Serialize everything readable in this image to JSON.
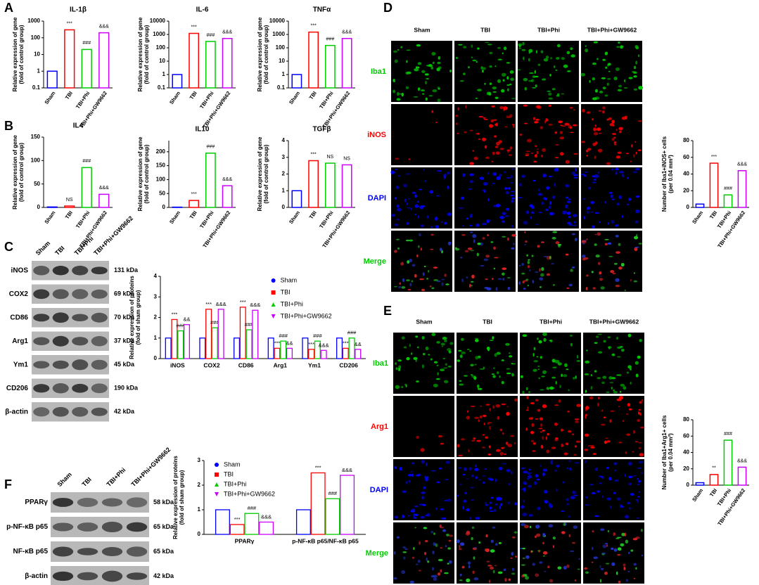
{
  "panel_labels": [
    "A",
    "B",
    "C",
    "D",
    "E",
    "F"
  ],
  "chart_data": [
    {
      "type": "bar",
      "title": "IL-1β",
      "ylabel": [
        "Relative expression of gene",
        "(fold of control group)"
      ],
      "log": true,
      "ylim": [
        0.1,
        1000
      ],
      "yticks": [
        0.1,
        1,
        10,
        100,
        1000
      ],
      "categories": [
        "Sham",
        "TBI",
        "TBI+Phi",
        "TBI+Phi+GW9662"
      ],
      "values": [
        1,
        300,
        20,
        200
      ],
      "colors": [
        "#0000ff",
        "#ff0000",
        "#00cc00",
        "#cc00ff"
      ],
      "annotations": [
        null,
        "***",
        "###",
        "&&&"
      ]
    },
    {
      "type": "bar",
      "title": "IL-6",
      "ylabel": [
        "Relative expression of gene",
        "(fold of control group)"
      ],
      "log": true,
      "ylim": [
        0.1,
        10000
      ],
      "yticks": [
        0.1,
        1,
        10,
        100,
        1000,
        10000
      ],
      "categories": [
        "Sham",
        "TBI",
        "TBI+Phi",
        "TBI+Phi+GW9662"
      ],
      "values": [
        1,
        1200,
        300,
        500
      ],
      "colors": [
        "#0000ff",
        "#ff0000",
        "#00cc00",
        "#cc00ff"
      ],
      "annotations": [
        null,
        "***",
        "###",
        "&&&"
      ]
    },
    {
      "type": "bar",
      "title": "TNFα",
      "ylabel": [
        "Relative expression of gene",
        "(fold of control group)"
      ],
      "log": true,
      "ylim": [
        0.1,
        10000
      ],
      "yticks": [
        0.1,
        1,
        10,
        100,
        1000,
        10000
      ],
      "categories": [
        "Sham",
        "TBI",
        "TBI+Phi",
        "TBI+Phi+GW9662"
      ],
      "values": [
        1,
        1500,
        150,
        500
      ],
      "colors": [
        "#0000ff",
        "#ff0000",
        "#00cc00",
        "#cc00ff"
      ],
      "annotations": [
        null,
        "***",
        "###",
        "&&&"
      ]
    },
    {
      "type": "bar",
      "title": "IL4",
      "ylabel": [
        "Relative expression of gene",
        "(fold of control group)"
      ],
      "log": false,
      "ylim": [
        0,
        150
      ],
      "yticks": [
        0,
        50,
        100,
        150
      ],
      "categories": [
        "Sham",
        "TBI",
        "TBI+Phi",
        "TBI+Phi+GW9662"
      ],
      "values": [
        1,
        3,
        85,
        28
      ],
      "colors": [
        "#0000ff",
        "#ff0000",
        "#00cc00",
        "#cc00ff"
      ],
      "annotations": [
        null,
        "NS",
        "###",
        "&&&"
      ]
    },
    {
      "type": "bar",
      "title": "IL10",
      "ylabel": [
        "Relative expression of gene",
        "(fold of control group)"
      ],
      "log": false,
      "ylim": [
        0,
        240
      ],
      "yticks": [
        0,
        50,
        100,
        150,
        200
      ],
      "categories": [
        "Sham",
        "TBI",
        "TBI+Phi",
        "TBI+Phi+GW9662"
      ],
      "values": [
        1,
        25,
        195,
        78
      ],
      "colors": [
        "#0000ff",
        "#ff0000",
        "#00cc00",
        "#cc00ff"
      ],
      "annotations": [
        null,
        "***",
        "###",
        "&&&"
      ]
    },
    {
      "type": "bar",
      "title": "TGFβ",
      "ylabel": [
        "Relative expression of gene",
        "(fold of control group)"
      ],
      "log": false,
      "ylim": [
        0,
        4
      ],
      "yticks": [
        0,
        1,
        2,
        3,
        4
      ],
      "categories": [
        "Sham",
        "TBI",
        "TBI+Phi",
        "TBI+Phi+GW9662"
      ],
      "values": [
        1,
        2.8,
        2.65,
        2.55
      ],
      "colors": [
        "#0000ff",
        "#ff0000",
        "#00cc00",
        "#cc00ff"
      ],
      "annotations": [
        null,
        "***",
        "NS",
        "NS"
      ]
    },
    {
      "type": "grouped_bar",
      "ylabel": [
        "Relative expression of proteins",
        "(fold of sham group)"
      ],
      "ylim": [
        0,
        4
      ],
      "yticks": [
        0,
        1,
        2,
        3,
        4
      ],
      "legend": "top-right",
      "categories": [
        "iNOS",
        "COX2",
        "CD86",
        "Arg1",
        "Ym1",
        "CD206"
      ],
      "series": [
        {
          "name": "Sham",
          "color": "#0000ff",
          "marker": "circle",
          "values": [
            1,
            1,
            1,
            1,
            1,
            1
          ]
        },
        {
          "name": "TBI",
          "color": "#ff0000",
          "marker": "square",
          "values": [
            1.9,
            2.4,
            2.5,
            0.5,
            0.45,
            0.5
          ],
          "annotations": [
            "***",
            "***",
            "***",
            "***",
            "***",
            "***"
          ]
        },
        {
          "name": "TBI+Phi",
          "color": "#00cc00",
          "marker": "triangle-up",
          "values": [
            1.35,
            1.5,
            1.4,
            0.85,
            0.85,
            1.0
          ],
          "annotations": [
            "###",
            "###",
            "###",
            "###",
            "###",
            "###"
          ]
        },
        {
          "name": "TBI+Phi+GW9662",
          "color": "#cc00ff",
          "marker": "triangle-down",
          "values": [
            1.65,
            2.4,
            2.35,
            0.5,
            0.4,
            0.45
          ],
          "annotations": [
            "&&",
            "&&&",
            "&&&",
            "&&",
            "&&&",
            "&&"
          ]
        }
      ]
    },
    {
      "type": "grouped_bar",
      "ylabel": [
        "Relative expression of proteins",
        "(fold of sham group)"
      ],
      "ylim": [
        0,
        3
      ],
      "yticks": [
        0,
        1,
        2,
        3
      ],
      "legend": "top-left",
      "categories": [
        "PPARγ",
        "p-NF-κB p65/NF-κB p65"
      ],
      "series": [
        {
          "name": "Sham",
          "color": "#0000ff",
          "marker": "circle",
          "values": [
            1,
            1
          ]
        },
        {
          "name": "TBI",
          "color": "#ff0000",
          "marker": "square",
          "values": [
            0.4,
            2.5
          ],
          "annotations": [
            "***",
            "***"
          ]
        },
        {
          "name": "TBI+Phi",
          "color": "#00cc00",
          "marker": "triangle-up",
          "values": [
            0.85,
            1.45
          ],
          "annotations": [
            "###",
            "###"
          ]
        },
        {
          "name": "TBI+Phi+GW9662",
          "color": "#cc00ff",
          "marker": "triangle-down",
          "values": [
            0.5,
            2.4
          ],
          "annotations": [
            "&&&",
            "&&&"
          ]
        }
      ]
    },
    {
      "type": "bar",
      "ylabel": [
        "Number of Iba1+iNOS+ cells",
        "(per 0.04 mm²)"
      ],
      "log": false,
      "ylim": [
        0,
        80
      ],
      "yticks": [
        0,
        20,
        40,
        60,
        80
      ],
      "categories": [
        "Sham",
        "TBI",
        "TBI+Phi",
        "TBI+Phi+GW9662"
      ],
      "values": [
        4,
        53,
        15,
        44
      ],
      "colors": [
        "#0000ff",
        "#ff0000",
        "#00cc00",
        "#cc00ff"
      ],
      "annotations": [
        null,
        "***",
        "###",
        "&&&"
      ]
    },
    {
      "type": "bar",
      "ylabel": [
        "Number of Iba1+Arg1+ cells",
        "(per 0.04 mm²)"
      ],
      "log": false,
      "ylim": [
        0,
        80
      ],
      "yticks": [
        0,
        20,
        40,
        60,
        80
      ],
      "categories": [
        "Sham",
        "TBI",
        "TBI+Phi",
        "TBI+Phi+GW9662"
      ],
      "values": [
        3,
        13,
        55,
        22
      ],
      "colors": [
        "#0000ff",
        "#ff0000",
        "#00cc00",
        "#cc00ff"
      ],
      "annotations": [
        null,
        "**",
        "###",
        "&&&"
      ]
    }
  ],
  "blots": [
    {
      "columns": [
        "Sham",
        "TBI",
        "TBI+Phi",
        "TBI+Phi+GW9662"
      ],
      "rows": [
        {
          "name": "iNOS",
          "size": "131 kDa"
        },
        {
          "name": "COX2",
          "size": "69 kDa"
        },
        {
          "name": "CD86",
          "size": "70 kDa"
        },
        {
          "name": "Arg1",
          "size": "37 kDa"
        },
        {
          "name": "Ym1",
          "size": "45 kDa"
        },
        {
          "name": "CD206",
          "size": "190 kDa"
        },
        {
          "name": "β-actin",
          "size": "42 kDa"
        }
      ]
    },
    {
      "columns": [
        "Sham",
        "TBI",
        "TBI+Phi",
        "TBI+Phi+GW9662"
      ],
      "rows": [
        {
          "name": "PPARγ",
          "size": "58 kDa"
        },
        {
          "name": "p-NF-κB p65",
          "size": "65 kDa"
        },
        {
          "name": "NF-κB p65",
          "size": "65 kDa"
        },
        {
          "name": "β-actin",
          "size": "42 kDa"
        }
      ]
    }
  ],
  "micrographs": [
    {
      "columns": [
        "Sham",
        "TBI",
        "TBI+Phi",
        "TBI+Phi+GW9662"
      ],
      "rows": [
        {
          "name": "Iba1",
          "color": "#00cc00"
        },
        {
          "name": "iNOS",
          "color": "#ff0000"
        },
        {
          "name": "DAPI",
          "color": "#0000ff"
        },
        {
          "name": "Merge",
          "color": "#00cc00"
        }
      ]
    },
    {
      "columns": [
        "Sham",
        "TBI",
        "TBI+Phi",
        "TBI+Phi+GW9662"
      ],
      "rows": [
        {
          "name": "Iba1",
          "color": "#00cc00"
        },
        {
          "name": "Arg1",
          "color": "#ff0000"
        },
        {
          "name": "DAPI",
          "color": "#0000ff"
        },
        {
          "name": "Merge",
          "color": "#00cc00"
        }
      ]
    }
  ]
}
